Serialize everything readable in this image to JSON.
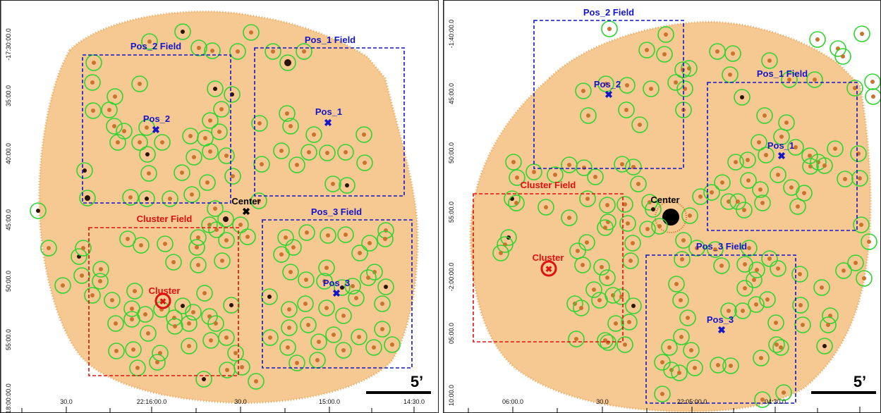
{
  "left_panel": {
    "field_labels": {
      "pos1": "Pos_1 Field",
      "pos2": "Pos_2 Field",
      "pos3": "Pos_3 Field",
      "cluster": "Cluster Field"
    },
    "point_labels": {
      "pos1": "Pos_1",
      "pos2": "Pos_2",
      "pos3": "Pos_3",
      "center": "Center",
      "cluster": "Cluster"
    },
    "scale_label": "5’",
    "y_ticks": [
      "-17:30:00.0",
      "35:00.0",
      "40:00.0",
      "45:00.0",
      "50:00.0",
      "55:00.0",
      "-18:00:00.0"
    ],
    "x_ticks": [
      "30.0",
      "22:16:00.0",
      "30.0",
      "15:00.0",
      "14:30.0"
    ]
  },
  "right_panel": {
    "field_labels": {
      "pos1": "Pos_1 Field",
      "pos2": "Pos_2 Field",
      "pos3": "Pos_3 Field",
      "cluster": "Cluster Field"
    },
    "point_labels": {
      "pos1": "Pos_1",
      "pos2": "Pos_2",
      "pos3": "Pos_3",
      "center": "Center",
      "cluster": "Cluster"
    },
    "scale_label": "5’",
    "y_ticks": [
      "-1:40:00.0",
      "45:00.0",
      "50:00.0",
      "55:00.0",
      "-2:00:00.0",
      "05:00.0",
      "10:00.0"
    ],
    "x_ticks": [
      "06:00.0",
      "30.0",
      "22:05:00.0",
      "04:30.0"
    ]
  },
  "colors": {
    "pos_field": "#1515c8",
    "cluster_field": "#e01010",
    "source_circle": "#2fd42f",
    "center_marker": "#000000",
    "background_emission": "#f2b46a"
  }
}
